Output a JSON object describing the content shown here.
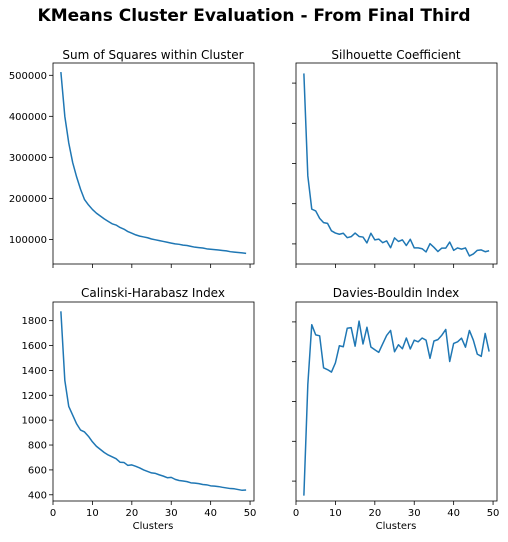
{
  "suptitle": "KMeans Cluster Evaluation - From Final Third",
  "x_ticks": [
    0,
    10,
    20,
    30,
    40,
    50
  ],
  "colors": {
    "line": "#1f77b4"
  },
  "chart_data": [
    {
      "type": "line",
      "title": "Sum of Squares within Cluster",
      "xlabel": "",
      "ylabel": "",
      "xlim": [
        0,
        51
      ],
      "ylim": [
        40000,
        530000
      ],
      "y_ticks": [
        100000,
        200000,
        300000,
        400000,
        500000
      ],
      "show_x_tick_labels": false,
      "show_y_tick_labels": true,
      "x": [
        2,
        3,
        4,
        5,
        6,
        7,
        8,
        9,
        10,
        11,
        12,
        13,
        14,
        15,
        16,
        17,
        18,
        19,
        20,
        21,
        22,
        23,
        24,
        25,
        26,
        27,
        28,
        29,
        30,
        31,
        32,
        33,
        34,
        35,
        36,
        37,
        38,
        39,
        40,
        41,
        42,
        43,
        44,
        45,
        46,
        47,
        48,
        49
      ],
      "values": [
        508000,
        400000,
        335000,
        287000,
        252000,
        222000,
        197000,
        184000,
        173000,
        164000,
        157000,
        150000,
        144000,
        138000,
        135000,
        129000,
        125000,
        119000,
        115000,
        111000,
        108000,
        106000,
        104000,
        101000,
        99000,
        97000,
        95000,
        93000,
        91000,
        89000,
        88000,
        86000,
        85000,
        83000,
        81000,
        80000,
        79000,
        77000,
        76000,
        75000,
        74000,
        73000,
        72000,
        70000,
        69000,
        68000,
        67000,
        66000
      ]
    },
    {
      "type": "line",
      "title": "Silhouette Coefficient",
      "xlabel": "",
      "ylabel": "",
      "xlim": [
        0,
        51
      ],
      "ylim": [
        0.0,
        1.0
      ],
      "y_ticks": [
        0.1,
        0.3,
        0.5,
        0.7,
        0.9
      ],
      "show_x_tick_labels": false,
      "show_y_tick_labels": false,
      "x": [
        2,
        3,
        4,
        5,
        6,
        7,
        8,
        9,
        10,
        11,
        12,
        13,
        14,
        15,
        16,
        17,
        18,
        19,
        20,
        21,
        22,
        23,
        24,
        25,
        26,
        27,
        28,
        29,
        30,
        31,
        32,
        33,
        34,
        35,
        36,
        37,
        38,
        39,
        40,
        41,
        42,
        43,
        44,
        45,
        46,
        47,
        48,
        49
      ],
      "values": [
        0.948,
        0.438,
        0.273,
        0.264,
        0.227,
        0.206,
        0.202,
        0.165,
        0.154,
        0.148,
        0.153,
        0.131,
        0.136,
        0.154,
        0.137,
        0.134,
        0.105,
        0.153,
        0.12,
        0.124,
        0.106,
        0.115,
        0.081,
        0.13,
        0.112,
        0.12,
        0.092,
        0.123,
        0.08,
        0.08,
        0.076,
        0.06,
        0.101,
        0.083,
        0.062,
        0.079,
        0.079,
        0.109,
        0.068,
        0.08,
        0.074,
        0.08,
        0.04,
        0.05,
        0.068,
        0.07,
        0.061,
        0.066
      ]
    },
    {
      "type": "line",
      "title": "Calinski-Harabasz Index",
      "xlabel": "Clusters",
      "ylabel": "",
      "xlim": [
        0,
        51
      ],
      "ylim": [
        350,
        1950
      ],
      "y_ticks": [
        400,
        600,
        800,
        1000,
        1200,
        1400,
        1600,
        1800
      ],
      "show_x_tick_labels": true,
      "show_y_tick_labels": true,
      "x": [
        2,
        3,
        4,
        5,
        6,
        7,
        8,
        9,
        10,
        11,
        12,
        13,
        14,
        15,
        16,
        17,
        18,
        19,
        20,
        21,
        22,
        23,
        24,
        25,
        26,
        27,
        28,
        29,
        30,
        31,
        32,
        33,
        34,
        35,
        36,
        37,
        38,
        39,
        40,
        41,
        42,
        43,
        44,
        45,
        46,
        47,
        48,
        49
      ],
      "values": [
        1875,
        1320,
        1110,
        1040,
        970,
        920,
        905,
        870,
        826,
        790,
        765,
        740,
        720,
        705,
        690,
        662,
        660,
        636,
        640,
        629,
        616,
        600,
        588,
        576,
        572,
        560,
        550,
        537,
        540,
        524,
        515,
        511,
        506,
        496,
        494,
        490,
        483,
        480,
        472,
        470,
        466,
        460,
        455,
        450,
        448,
        442,
        436,
        438
      ]
    },
    {
      "type": "line",
      "title": "Davies-Bouldin Index",
      "xlabel": "Clusters",
      "ylabel": "",
      "xlim": [
        0,
        51
      ],
      "ylim": [
        0.0,
        1.0
      ],
      "y_ticks": [
        0.1,
        0.3,
        0.5,
        0.7,
        0.9
      ],
      "show_x_tick_labels": true,
      "show_y_tick_labels": false,
      "x": [
        2,
        3,
        4,
        5,
        6,
        7,
        8,
        9,
        10,
        11,
        12,
        13,
        14,
        15,
        16,
        17,
        18,
        19,
        20,
        21,
        22,
        23,
        24,
        25,
        26,
        27,
        28,
        29,
        30,
        31,
        32,
        33,
        34,
        35,
        36,
        37,
        38,
        39,
        40,
        41,
        42,
        43,
        44,
        45,
        46,
        47,
        48,
        49
      ],
      "values": [
        0.027,
        0.585,
        0.886,
        0.835,
        0.83,
        0.669,
        0.66,
        0.648,
        0.694,
        0.78,
        0.775,
        0.868,
        0.871,
        0.778,
        0.904,
        0.789,
        0.873,
        0.774,
        0.76,
        0.747,
        0.79,
        0.832,
        0.857,
        0.75,
        0.785,
        0.765,
        0.819,
        0.764,
        0.808,
        0.8,
        0.819,
        0.808,
        0.717,
        0.804,
        0.811,
        0.833,
        0.862,
        0.701,
        0.792,
        0.8,
        0.818,
        0.773,
        0.857,
        0.808,
        0.738,
        0.727,
        0.842,
        0.751
      ]
    }
  ]
}
